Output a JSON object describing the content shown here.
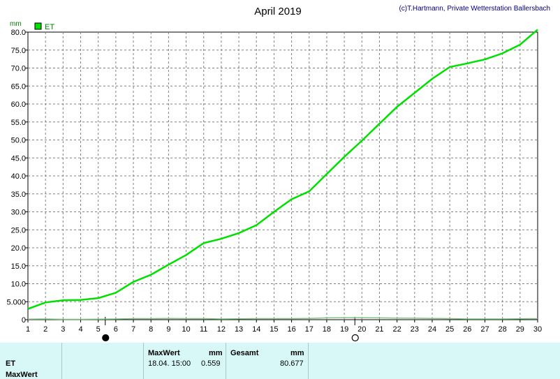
{
  "header": {
    "title": "April 2019",
    "copyright": "(c)T.Hartmann, Private Wetterstation Ballersbach",
    "unit": "mm"
  },
  "legend": {
    "label": "ET",
    "color": "#00e000"
  },
  "chart_data": {
    "type": "line",
    "title": "April 2019",
    "ylabel": "mm",
    "xlim": [
      1,
      30
    ],
    "ylim": [
      0,
      80
    ],
    "y_ticks": [
      "0",
      "5.000",
      "10.0",
      "15.0",
      "20.0",
      "25.0",
      "30.0",
      "35.0",
      "40.0",
      "45.0",
      "50.0",
      "55.0",
      "60.0",
      "65.0",
      "70.0",
      "75.0",
      "80.0"
    ],
    "x_ticks": [
      "1",
      "2",
      "3",
      "4",
      "5",
      "6",
      "7",
      "8",
      "9",
      "10",
      "11",
      "12",
      "13",
      "14",
      "15",
      "16",
      "17",
      "18",
      "19",
      "20",
      "21",
      "22",
      "23",
      "24",
      "25",
      "26",
      "27",
      "28",
      "29",
      "30"
    ],
    "grid": true,
    "legend_position": "top-left",
    "moon_phases": [
      {
        "x": 5.4,
        "phase": "new-moon"
      },
      {
        "x": 19.6,
        "phase": "full-moon"
      }
    ],
    "series": [
      {
        "name": "ET",
        "color": "#00e000",
        "x": [
          1,
          2,
          3,
          4,
          5,
          6,
          7,
          8,
          9,
          10,
          11,
          12,
          13,
          14,
          15,
          16,
          17,
          18,
          19,
          20,
          21,
          22,
          23,
          24,
          25,
          26,
          27,
          28,
          29,
          30
        ],
        "values": [
          3.0,
          4.8,
          5.4,
          5.5,
          6.0,
          7.5,
          10.5,
          12.5,
          15.3,
          18.0,
          21.3,
          22.5,
          24.1,
          26.3,
          30.0,
          33.5,
          35.7,
          40.5,
          45.3,
          49.8,
          54.5,
          59.2,
          63.1,
          67.0,
          70.3,
          71.3,
          72.4,
          74.1,
          76.5,
          80.7
        ]
      },
      {
        "name": "ET MaxWert",
        "color": "#80c080",
        "x": [
          1,
          2,
          3,
          4,
          5,
          6,
          7,
          8,
          9,
          10,
          11,
          12,
          13,
          14,
          15,
          16,
          17,
          18,
          19,
          20,
          21,
          22,
          23,
          24,
          25,
          26,
          27,
          28,
          29,
          30
        ],
        "values": [
          0.15,
          0.2,
          0.1,
          0.1,
          0.15,
          0.2,
          0.3,
          0.3,
          0.35,
          0.3,
          0.3,
          0.2,
          0.25,
          0.3,
          0.3,
          0.3,
          0.35,
          0.5,
          0.55,
          0.55,
          0.5,
          0.45,
          0.4,
          0.35,
          0.3,
          0.2,
          0.2,
          0.2,
          0.25,
          0.3
        ]
      }
    ]
  },
  "footer": {
    "row1": "ET",
    "row2": "MaxWert",
    "max_header": "MaxWert",
    "max_unit": "mm",
    "max_date": "18.04. 15:00",
    "max_value": "0.559",
    "total_header": "Gesamt",
    "total_unit": "mm",
    "total_value": "80.677"
  }
}
